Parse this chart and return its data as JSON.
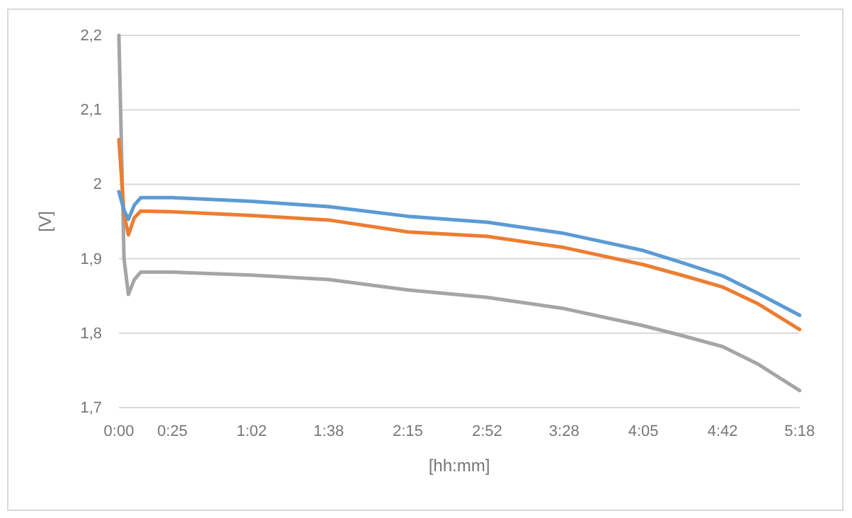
{
  "chart_data": {
    "type": "line",
    "xlabel": "[hh:mm]",
    "ylabel": "[V]",
    "xlim": [
      0,
      5.3
    ],
    "xticks": [
      {
        "value": 0,
        "label": "0:00"
      },
      {
        "value": 0.4167,
        "label": "0:25"
      },
      {
        "value": 1.0333,
        "label": "1:02"
      },
      {
        "value": 1.6333,
        "label": "1:38"
      },
      {
        "value": 2.25,
        "label": "2:15"
      },
      {
        "value": 2.8667,
        "label": "2:52"
      },
      {
        "value": 3.4667,
        "label": "3:28"
      },
      {
        "value": 4.0833,
        "label": "4:05"
      },
      {
        "value": 4.7,
        "label": "4:42"
      },
      {
        "value": 5.3,
        "label": "5:18"
      }
    ],
    "ylim": [
      1.7,
      2.2
    ],
    "yticks": [
      {
        "value": 1.7,
        "label": "1,7"
      },
      {
        "value": 1.8,
        "label": "1,8"
      },
      {
        "value": 1.9,
        "label": "1,9"
      },
      {
        "value": 2,
        "label": "2"
      },
      {
        "value": 2.1,
        "label": "2,1"
      },
      {
        "value": 2.2,
        "label": "2,2"
      }
    ],
    "grid": "y",
    "marker": "none",
    "line_style": "solid",
    "x": [
      0,
      0.04,
      0.074,
      0.12,
      0.17,
      0.4167,
      1.0333,
      1.6333,
      2.25,
      2.8667,
      3.4667,
      4.0833,
      4.38,
      4.7,
      4.97,
      5.3
    ],
    "series": [
      {
        "color": "#a5a5a5",
        "values": [
          2.2,
          1.9,
          1.852,
          1.872,
          1.882,
          1.882,
          1.878,
          1.872,
          1.858,
          1.848,
          1.833,
          1.81,
          1.797,
          1.782,
          1.759,
          1.723
        ]
      },
      {
        "color": "#ed7d31",
        "values": [
          2.06,
          1.96,
          1.932,
          1.955,
          1.964,
          1.963,
          1.958,
          1.952,
          1.936,
          1.93,
          1.915,
          1.892,
          1.878,
          1.862,
          1.84,
          1.805
        ]
      },
      {
        "color": "#5b9bd5",
        "values": [
          1.99,
          1.965,
          1.953,
          1.972,
          1.982,
          1.982,
          1.977,
          1.97,
          1.957,
          1.949,
          1.934,
          1.911,
          1.895,
          1.877,
          1.854,
          1.824
        ]
      }
    ]
  }
}
